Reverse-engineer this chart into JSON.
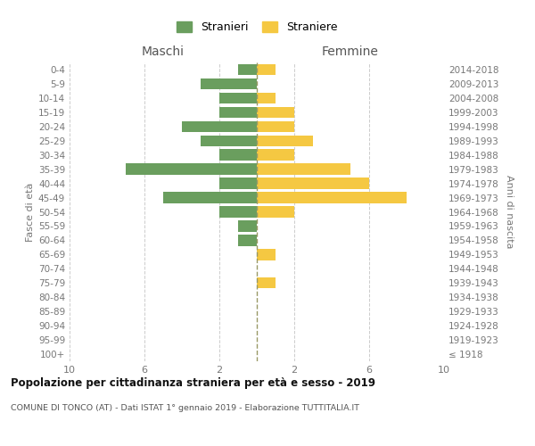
{
  "age_groups": [
    "100+",
    "95-99",
    "90-94",
    "85-89",
    "80-84",
    "75-79",
    "70-74",
    "65-69",
    "60-64",
    "55-59",
    "50-54",
    "45-49",
    "40-44",
    "35-39",
    "30-34",
    "25-29",
    "20-24",
    "15-19",
    "10-14",
    "5-9",
    "0-4"
  ],
  "birth_years": [
    "≤ 1918",
    "1919-1923",
    "1924-1928",
    "1929-1933",
    "1934-1938",
    "1939-1943",
    "1944-1948",
    "1949-1953",
    "1954-1958",
    "1959-1963",
    "1964-1968",
    "1969-1973",
    "1974-1978",
    "1979-1983",
    "1984-1988",
    "1989-1993",
    "1994-1998",
    "1999-2003",
    "2004-2008",
    "2009-2013",
    "2014-2018"
  ],
  "males": [
    0,
    0,
    0,
    0,
    0,
    0,
    0,
    0,
    1,
    1,
    2,
    5,
    2,
    7,
    2,
    3,
    4,
    2,
    2,
    3,
    1
  ],
  "females": [
    0,
    0,
    0,
    0,
    0,
    1,
    0,
    1,
    0,
    0,
    2,
    8,
    6,
    5,
    2,
    3,
    2,
    2,
    1,
    0,
    1
  ],
  "male_color": "#6a9e5e",
  "female_color": "#f5c842",
  "grid_color": "#cccccc",
  "center_line_color": "#999966",
  "title": "Popolazione per cittadinanza straniera per età e sesso - 2019",
  "subtitle": "COMUNE DI TONCO (AT) - Dati ISTAT 1° gennaio 2019 - Elaborazione TUTTITALIA.IT",
  "header_left": "Maschi",
  "header_right": "Femmine",
  "ylabel_left": "Fasce di età",
  "ylabel_right": "Anni di nascita",
  "legend_male": "Stranieri",
  "legend_female": "Straniere",
  "xlim": 10
}
